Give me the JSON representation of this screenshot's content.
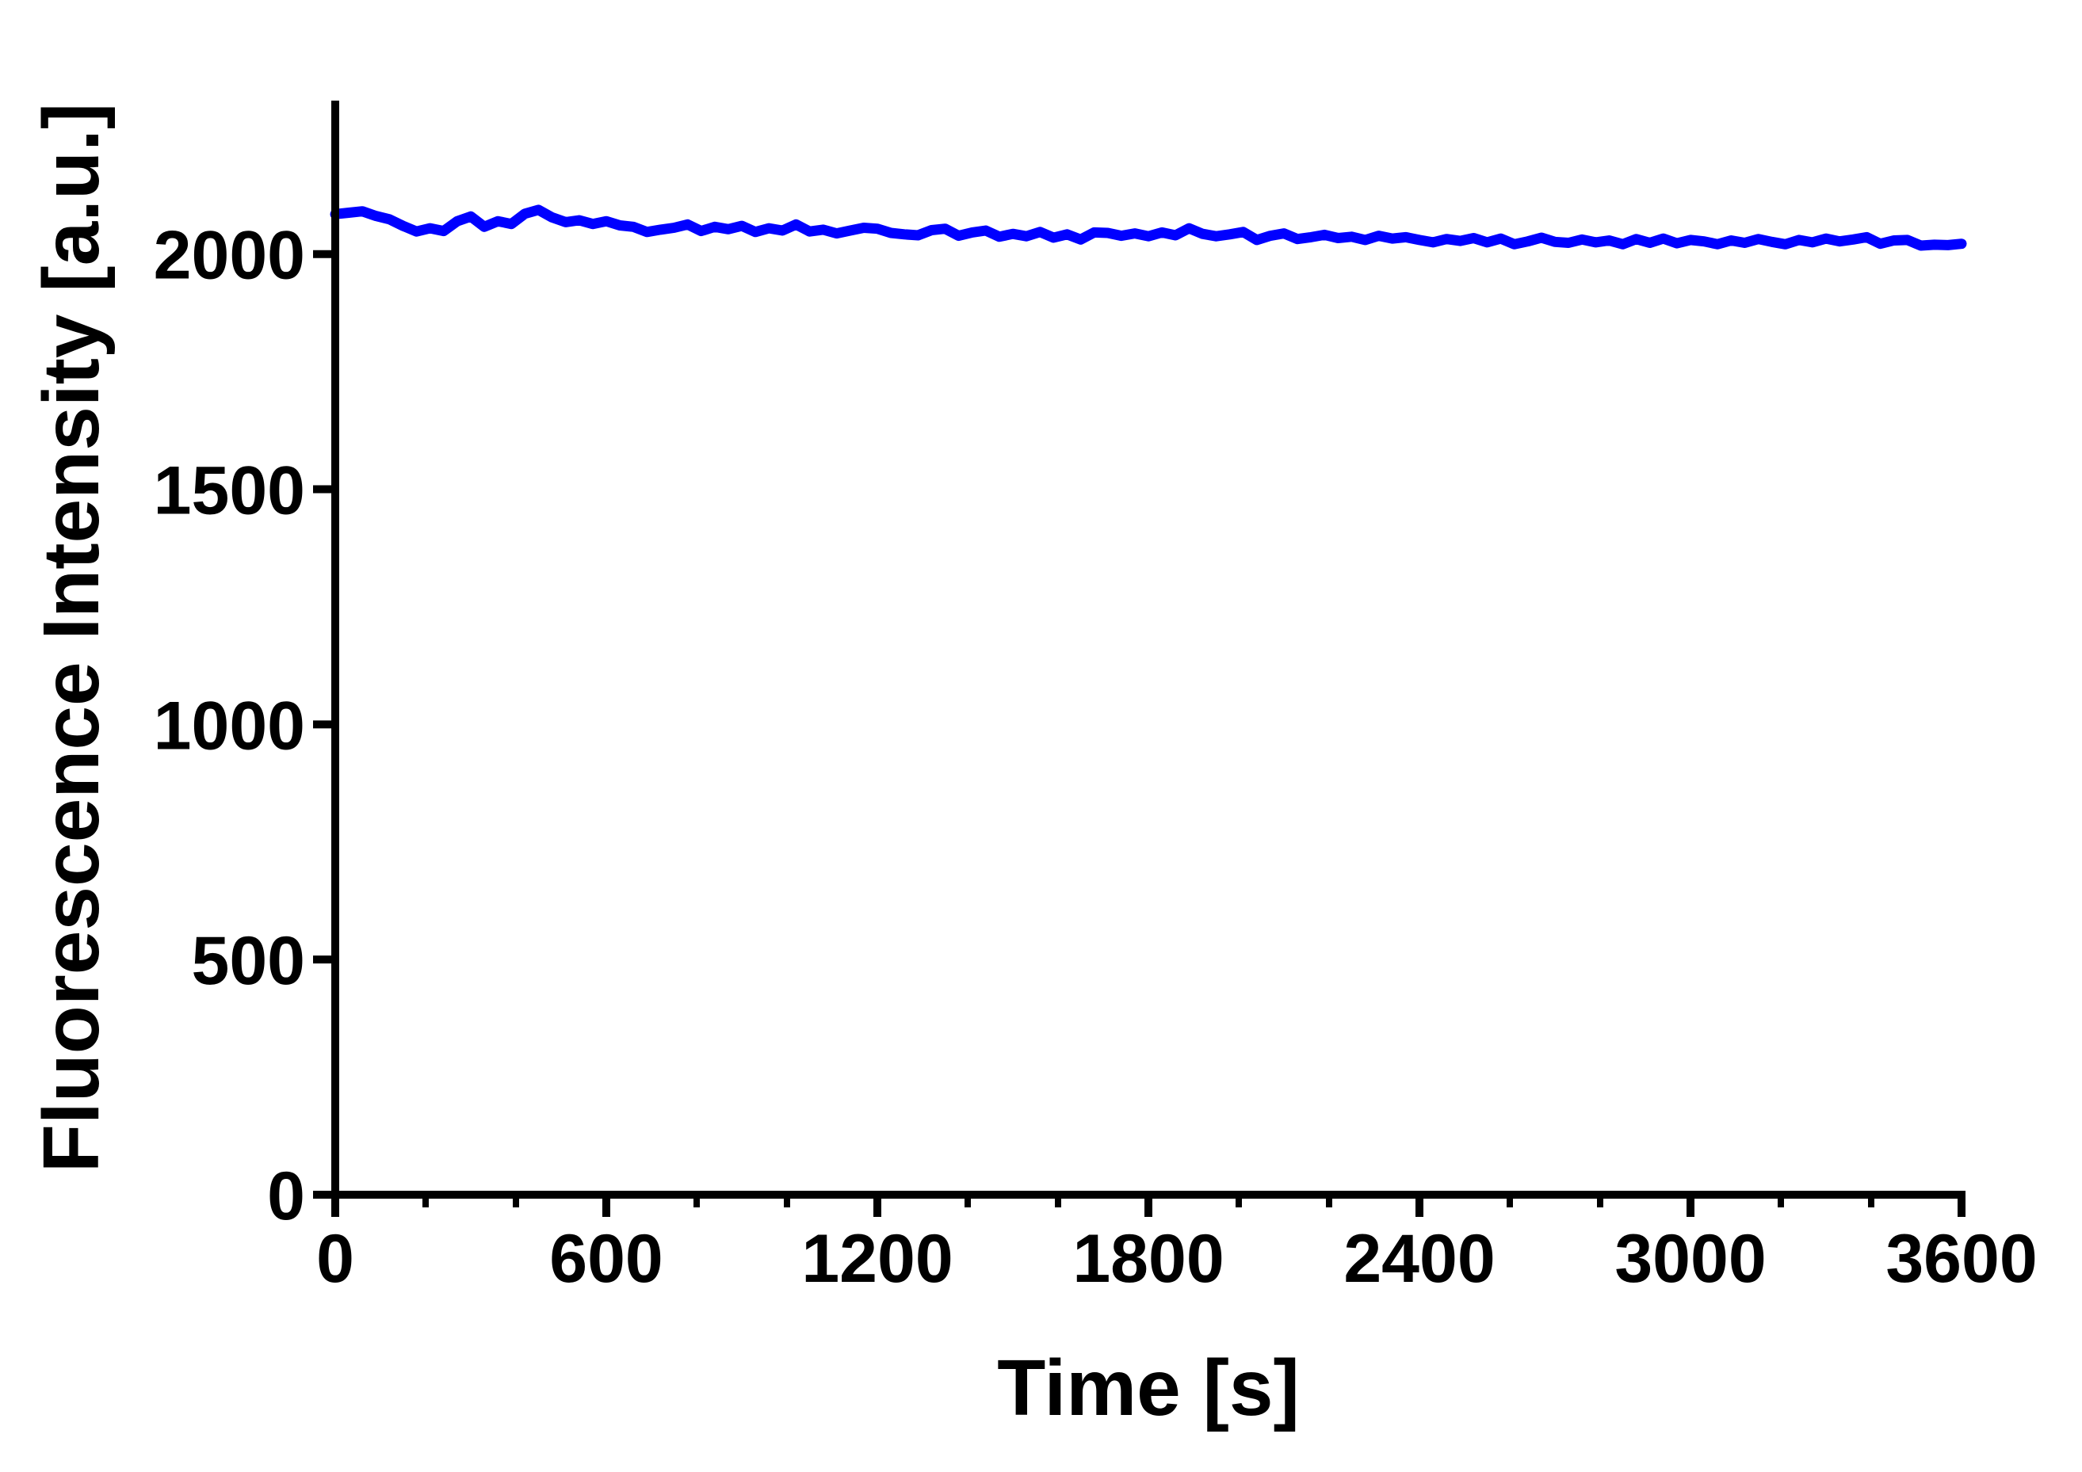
{
  "chart_data": {
    "type": "line",
    "title": "",
    "xlabel": "Time [s]",
    "ylabel": "Fluorescence Intensity [a.u.]",
    "xlim": [
      0,
      3600
    ],
    "ylim": [
      0,
      2200
    ],
    "x_ticks": [
      0,
      600,
      1200,
      1800,
      2400,
      3000,
      3600
    ],
    "x_tick_labels": [
      "0",
      "600",
      "1200",
      "1800",
      "2400",
      "3000",
      "3600"
    ],
    "x_minor_step": 200,
    "y_ticks": [
      0,
      500,
      1000,
      1500,
      2000
    ],
    "y_tick_labels": [
      "0",
      "500",
      "1000",
      "1500",
      "2000"
    ],
    "grid": false,
    "legend": "none",
    "series": [
      {
        "color": "#0000ff",
        "x": [
          0,
          30,
          60,
          90,
          120,
          150,
          180,
          210,
          240,
          270,
          300,
          330,
          360,
          390,
          420,
          450,
          480,
          510,
          540,
          570,
          600,
          630,
          660,
          690,
          720,
          750,
          780,
          810,
          840,
          870,
          900,
          930,
          960,
          990,
          1020,
          1050,
          1080,
          1110,
          1140,
          1170,
          1200,
          1230,
          1260,
          1290,
          1320,
          1350,
          1380,
          1410,
          1440,
          1470,
          1500,
          1530,
          1560,
          1590,
          1620,
          1650,
          1680,
          1710,
          1740,
          1770,
          1800,
          1830,
          1860,
          1890,
          1920,
          1950,
          1980,
          2010,
          2040,
          2070,
          2100,
          2130,
          2160,
          2190,
          2220,
          2250,
          2280,
          2310,
          2340,
          2370,
          2400,
          2430,
          2460,
          2490,
          2520,
          2550,
          2580,
          2610,
          2640,
          2670,
          2700,
          2730,
          2760,
          2790,
          2820,
          2850,
          2880,
          2910,
          2940,
          2970,
          3000,
          3030,
          3060,
          3090,
          3120,
          3150,
          3180,
          3210,
          3240,
          3270,
          3300,
          3330,
          3360,
          3390,
          3420,
          3450,
          3480,
          3510,
          3540,
          3570,
          3600
        ],
        "values": [
          2085,
          2088,
          2091,
          2081,
          2074,
          2060,
          2048,
          2055,
          2049,
          2070,
          2080,
          2058,
          2070,
          2064,
          2086,
          2094,
          2078,
          2068,
          2072,
          2064,
          2070,
          2061,
          2058,
          2047,
          2052,
          2056,
          2063,
          2049,
          2058,
          2053,
          2060,
          2047,
          2055,
          2050,
          2063,
          2048,
          2052,
          2044,
          2050,
          2056,
          2054,
          2045,
          2042,
          2040,
          2051,
          2054,
          2039,
          2046,
          2050,
          2037,
          2043,
          2038,
          2047,
          2035,
          2042,
          2031,
          2046,
          2045,
          2039,
          2044,
          2038,
          2046,
          2040,
          2055,
          2043,
          2038,
          2042,
          2047,
          2030,
          2039,
          2044,
          2032,
          2036,
          2041,
          2034,
          2037,
          2030,
          2039,
          2033,
          2036,
          2030,
          2025,
          2032,
          2028,
          2034,
          2025,
          2033,
          2021,
          2027,
          2035,
          2026,
          2024,
          2031,
          2025,
          2029,
          2021,
          2032,
          2024,
          2033,
          2023,
          2030,
          2027,
          2021,
          2029,
          2024,
          2032,
          2026,
          2021,
          2030,
          2025,
          2033,
          2027,
          2031,
          2036,
          2022,
          2029,
          2030,
          2018,
          2020,
          2019,
          2022
        ]
      }
    ]
  }
}
